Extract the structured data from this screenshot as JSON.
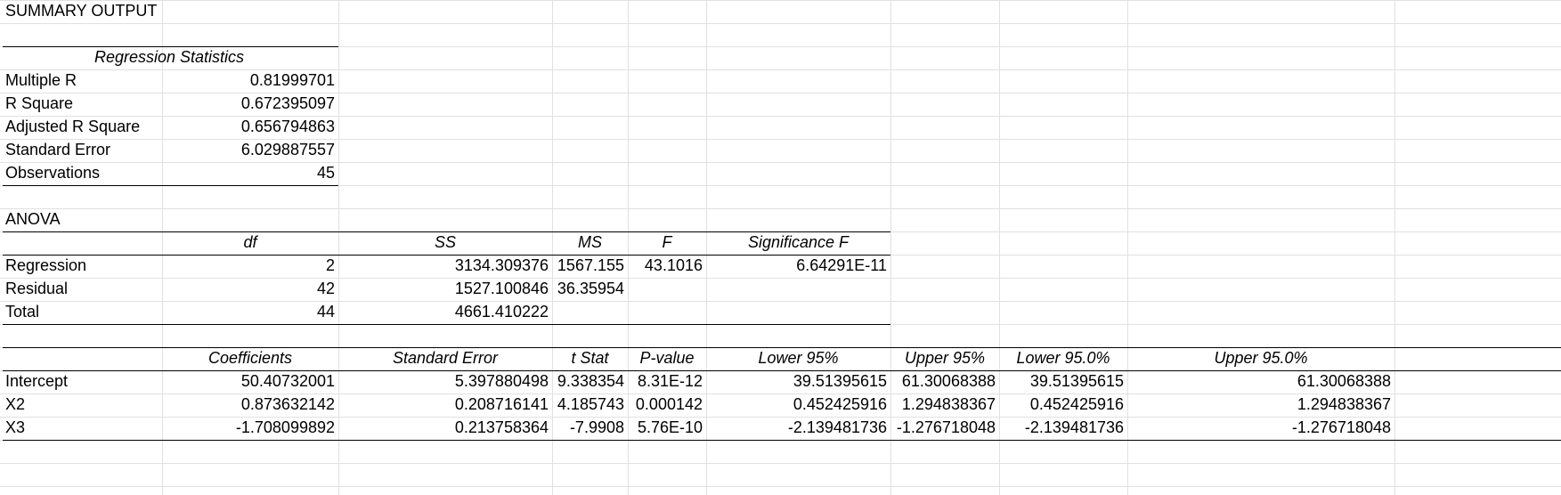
{
  "title": "SUMMARY OUTPUT",
  "regression_statistics": {
    "header": "Regression Statistics",
    "rows": [
      {
        "label": "Multiple R",
        "value": "0.81999701"
      },
      {
        "label": "R Square",
        "value": "0.672395097"
      },
      {
        "label": "Adjusted R Square",
        "value": "0.656794863"
      },
      {
        "label": "Standard Error",
        "value": "6.029887557"
      },
      {
        "label": "Observations",
        "value": "45"
      }
    ]
  },
  "anova": {
    "title": "ANOVA",
    "headers": [
      "",
      "df",
      "SS",
      "MS",
      "F",
      "Significance F"
    ],
    "rows": [
      [
        "Regression",
        "2",
        "3134.309376",
        "1567.155",
        "43.1016",
        "6.64291E-11"
      ],
      [
        "Residual",
        "42",
        "1527.100846",
        "36.35954",
        "",
        ""
      ],
      [
        "Total",
        "44",
        "4661.410222",
        "",
        "",
        ""
      ]
    ]
  },
  "coefficients": {
    "headers": [
      "",
      "Coefficients",
      "Standard Error",
      "t Stat",
      "P-value",
      "Lower 95%",
      "Upper 95%",
      "Lower 95.0%",
      "Upper 95.0%"
    ],
    "rows": [
      [
        "Intercept",
        "50.40732001",
        "5.397880498",
        "9.338354",
        "8.31E-12",
        "39.51395615",
        "61.30068388",
        "39.51395615",
        "61.30068388"
      ],
      [
        "X2",
        "0.873632142",
        "0.208716141",
        "4.185743",
        "0.000142",
        "0.452425916",
        "1.294838367",
        "0.452425916",
        "1.294838367"
      ],
      [
        "X3",
        "-1.708099892",
        "0.213758364",
        "-7.9908",
        "5.76E-10",
        "-2.139481736",
        "-1.276718048",
        "-2.139481736",
        "-1.276718048"
      ]
    ]
  }
}
